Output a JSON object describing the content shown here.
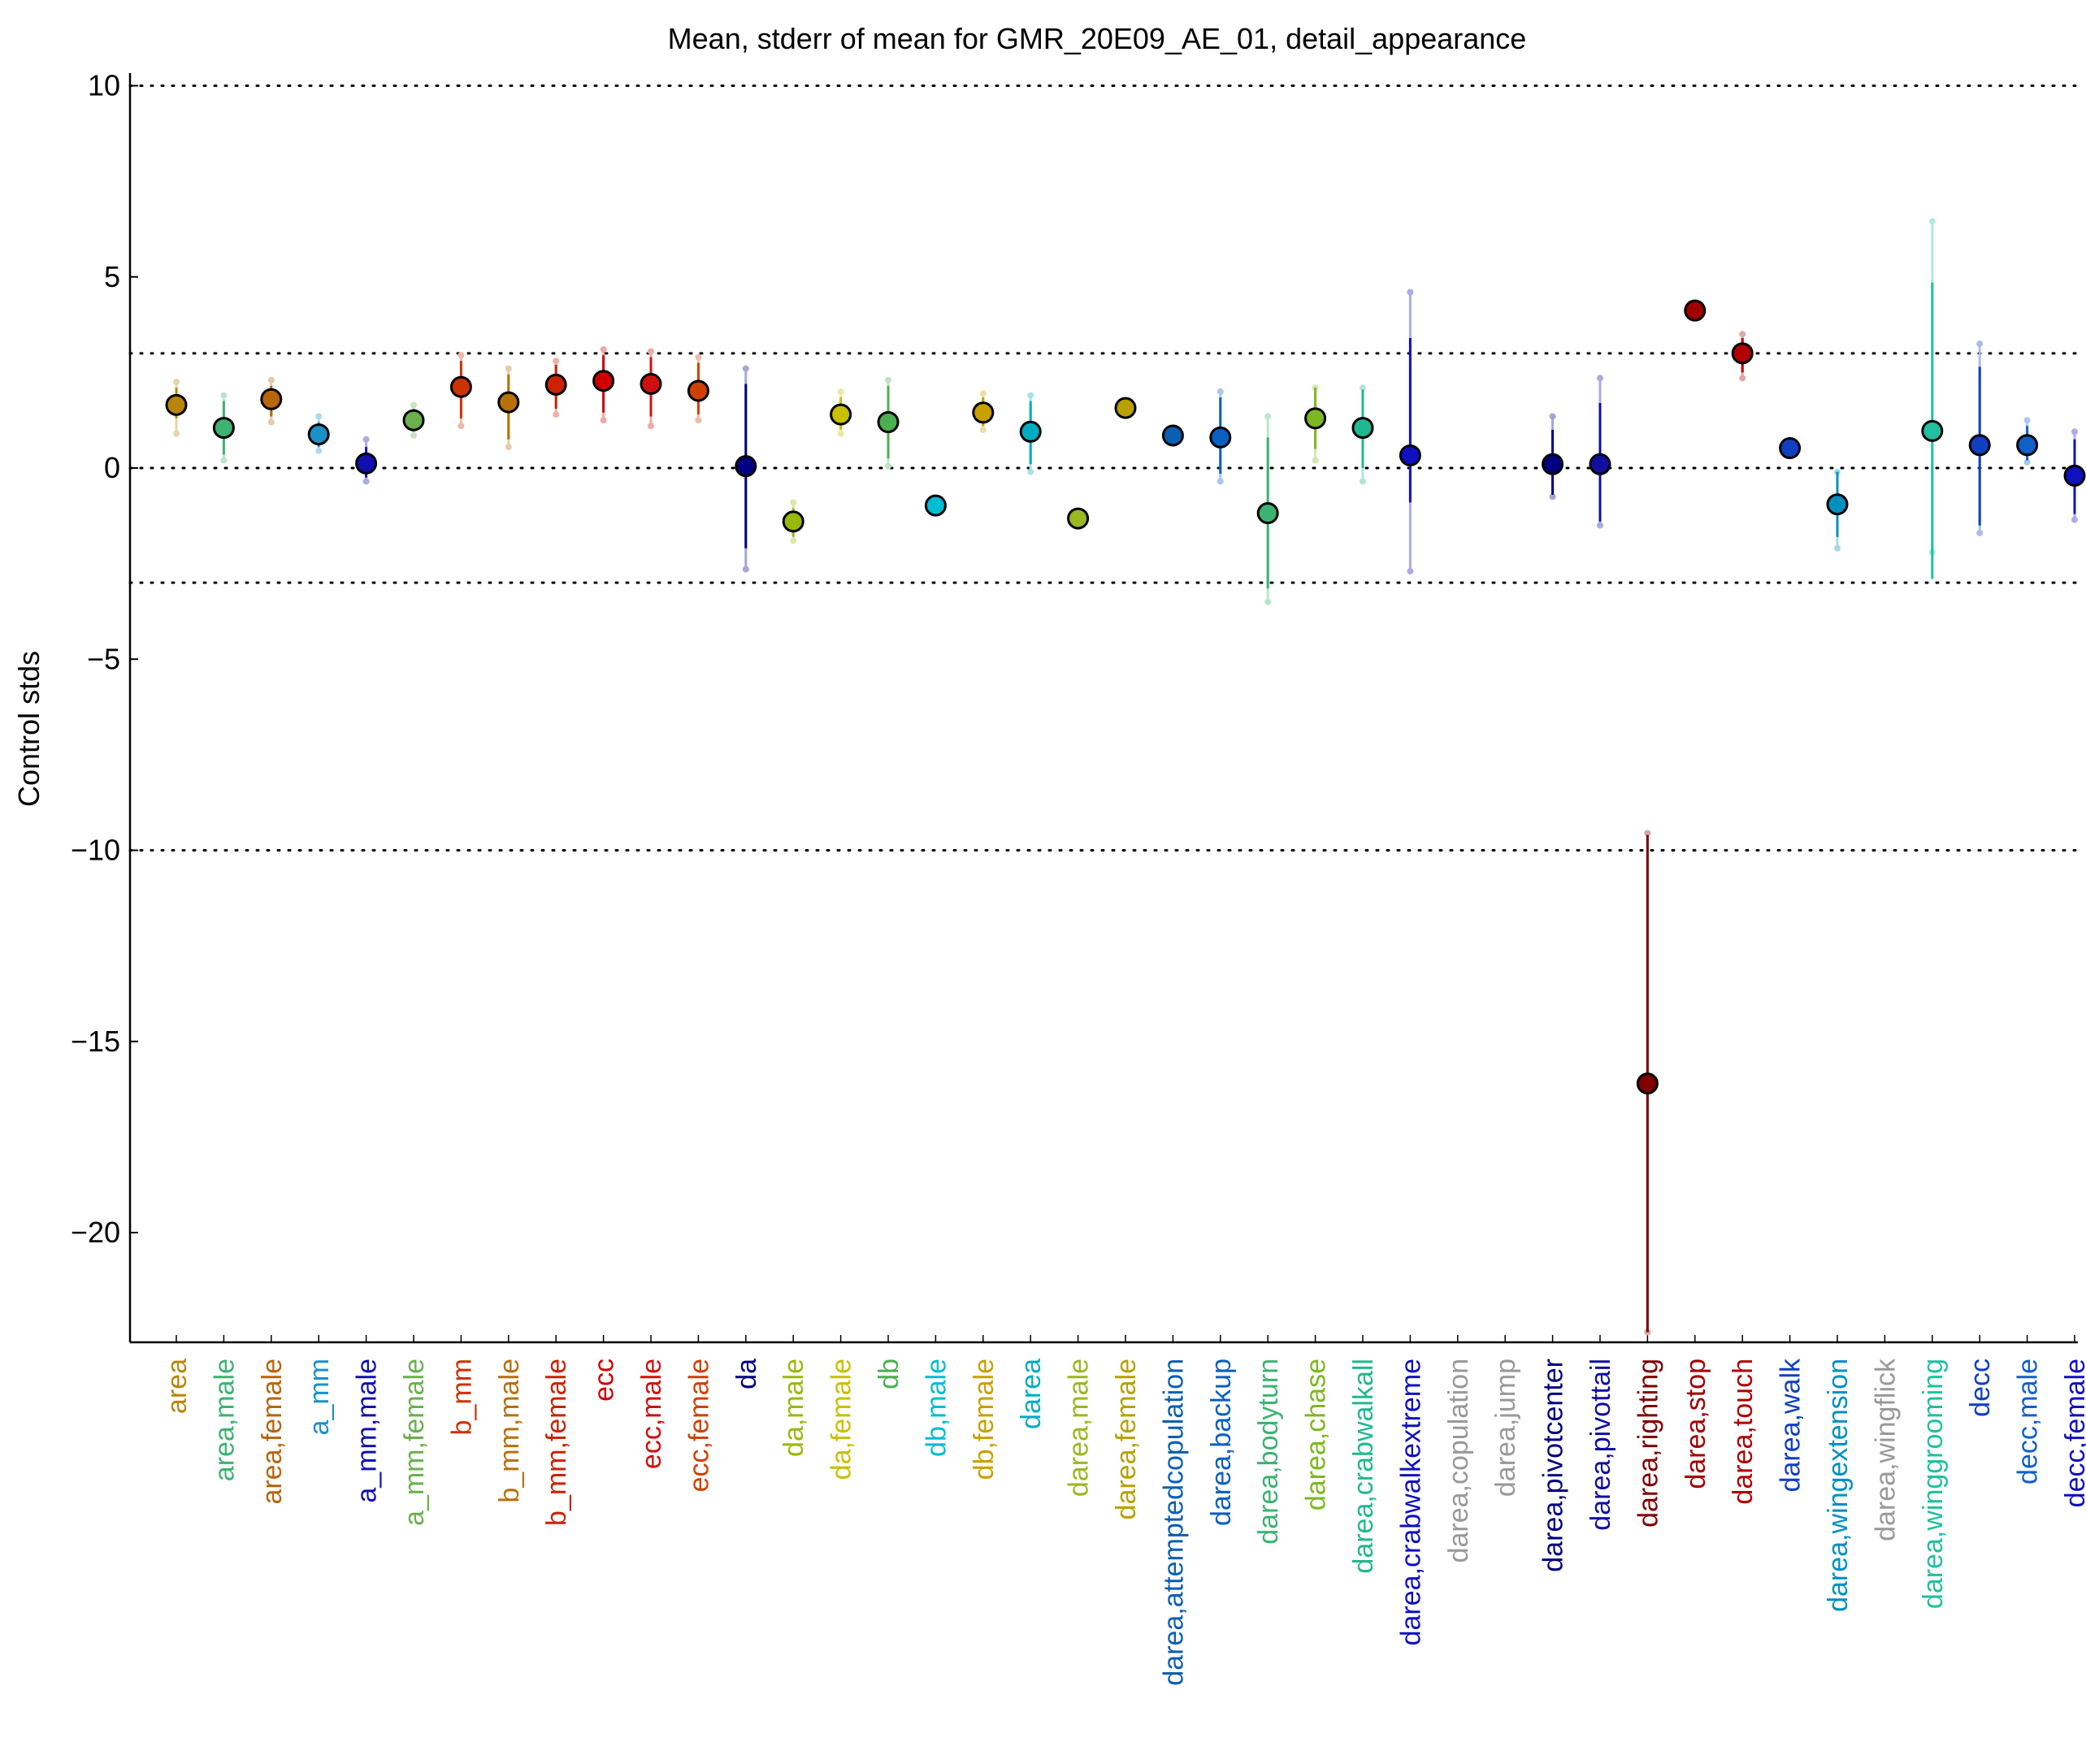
{
  "chart_data": {
    "type": "scatter",
    "title": "Mean, stderr of mean for GMR_20E09_AE_01, detail_appearance",
    "xlabel": "",
    "ylabel": "Control stds",
    "ylim": [
      -23,
      10.3
    ],
    "yticks": [
      10,
      5,
      0,
      -5,
      -10,
      -15,
      -20
    ],
    "ytick_labels": [
      "10",
      "5",
      "0",
      "−5",
      "−10",
      "−15",
      "−20"
    ],
    "reference_lines": [
      10,
      3,
      0,
      -3,
      -10
    ],
    "grid": false,
    "points": [
      {
        "label": "area",
        "color": "#b8860b",
        "mean": 1.65,
        "err_lo": 1.3,
        "err_hi": 2.1,
        "ext_lo": 0.9,
        "ext_hi": 2.25,
        "has_point": true
      },
      {
        "label": "area,male",
        "color": "#3cb371",
        "mean": 1.05,
        "err_lo": 0.35,
        "err_hi": 1.75,
        "ext_lo": 0.2,
        "ext_hi": 1.9,
        "has_point": true
      },
      {
        "label": "area,female",
        "color": "#b8650b",
        "mean": 1.8,
        "err_lo": 1.35,
        "err_hi": 2.15,
        "ext_lo": 1.2,
        "ext_hi": 2.3,
        "has_point": true
      },
      {
        "label": "a_mm",
        "color": "#1e90c8",
        "mean": 0.88,
        "err_lo": 0.55,
        "err_hi": 1.2,
        "ext_lo": 0.45,
        "ext_hi": 1.35,
        "has_point": true
      },
      {
        "label": "a_mm,male",
        "color": "#1010b0",
        "mean": 0.12,
        "err_lo": -0.25,
        "err_hi": 0.55,
        "ext_lo": -0.35,
        "ext_hi": 0.75,
        "has_point": true
      },
      {
        "label": "a_mm,female",
        "color": "#6ab04c",
        "mean": 1.25,
        "err_lo": 0.95,
        "err_hi": 1.55,
        "ext_lo": 0.85,
        "ext_hi": 1.65,
        "has_point": true
      },
      {
        "label": "b_mm",
        "color": "#cc3300",
        "mean": 2.12,
        "err_lo": 1.3,
        "err_hi": 2.8,
        "ext_lo": 1.1,
        "ext_hi": 2.95,
        "has_point": true
      },
      {
        "label": "b_mm,male",
        "color": "#b8700b",
        "mean": 1.72,
        "err_lo": 0.75,
        "err_hi": 2.45,
        "ext_lo": 0.55,
        "ext_hi": 2.6,
        "has_point": true
      },
      {
        "label": "b_mm,female",
        "color": "#cc2200",
        "mean": 2.18,
        "err_lo": 1.55,
        "err_hi": 2.7,
        "ext_lo": 1.4,
        "ext_hi": 2.8,
        "has_point": true
      },
      {
        "label": "ecc",
        "color": "#d00000",
        "mean": 2.28,
        "err_lo": 1.45,
        "err_hi": 2.95,
        "ext_lo": 1.25,
        "ext_hi": 3.1,
        "has_point": true
      },
      {
        "label": "ecc,male",
        "color": "#d01010",
        "mean": 2.2,
        "err_lo": 1.35,
        "err_hi": 2.9,
        "ext_lo": 1.1,
        "ext_hi": 3.05,
        "has_point": true
      },
      {
        "label": "ecc,female",
        "color": "#d04000",
        "mean": 2.02,
        "err_lo": 1.4,
        "err_hi": 2.75,
        "ext_lo": 1.25,
        "ext_hi": 2.9,
        "has_point": true
      },
      {
        "label": "da",
        "color": "#000080",
        "mean": 0.05,
        "err_lo": -2.1,
        "err_hi": 2.2,
        "ext_lo": -2.65,
        "ext_hi": 2.6,
        "has_point": true
      },
      {
        "label": "da,male",
        "color": "#9ab80b",
        "mean": -1.4,
        "err_lo": -1.8,
        "err_hi": -1.05,
        "ext_lo": -1.9,
        "ext_hi": -0.9,
        "has_point": true
      },
      {
        "label": "da,female",
        "color": "#c8c000",
        "mean": 1.4,
        "err_lo": 1.0,
        "err_hi": 1.85,
        "ext_lo": 0.9,
        "ext_hi": 2.0,
        "has_point": true
      },
      {
        "label": "db",
        "color": "#4caf50",
        "mean": 1.2,
        "err_lo": 0.25,
        "err_hi": 2.15,
        "ext_lo": 0.05,
        "ext_hi": 2.3,
        "has_point": true
      },
      {
        "label": "db,male",
        "color": "#00bcd4",
        "mean": -0.98,
        "err_lo": -1.1,
        "err_hi": -0.85,
        "ext_lo": -1.1,
        "ext_hi": -0.85,
        "has_point": true
      },
      {
        "label": "db,female",
        "color": "#c8a000",
        "mean": 1.45,
        "err_lo": 1.1,
        "err_hi": 1.85,
        "ext_lo": 1.0,
        "ext_hi": 1.95,
        "has_point": true
      },
      {
        "label": "darea",
        "color": "#00acc1",
        "mean": 0.95,
        "err_lo": 0.1,
        "err_hi": 1.75,
        "ext_lo": -0.1,
        "ext_hi": 1.9,
        "has_point": true
      },
      {
        "label": "darea,male",
        "color": "#9ab820",
        "mean": -1.32,
        "err_lo": -1.45,
        "err_hi": -1.2,
        "ext_lo": -1.45,
        "ext_hi": -1.2,
        "has_point": true
      },
      {
        "label": "darea,female",
        "color": "#b8a000",
        "mean": 1.57,
        "err_lo": 1.45,
        "err_hi": 1.7,
        "ext_lo": 1.45,
        "ext_hi": 1.7,
        "has_point": true
      },
      {
        "label": "darea,attemptedcopulation",
        "color": "#0a5fb0",
        "mean": 0.85,
        "err_lo": 0.75,
        "err_hi": 0.95,
        "ext_lo": 0.75,
        "ext_hi": 0.95,
        "has_point": true
      },
      {
        "label": "darea,backup",
        "color": "#0a60c0",
        "mean": 0.8,
        "err_lo": -0.15,
        "err_hi": 1.85,
        "ext_lo": -0.35,
        "ext_hi": 2.0,
        "has_point": true
      },
      {
        "label": "darea,bodyturn",
        "color": "#3cb371",
        "mean": -1.18,
        "err_lo": -3.15,
        "err_hi": 0.8,
        "ext_lo": -3.5,
        "ext_hi": 1.35,
        "has_point": true
      },
      {
        "label": "darea,chase",
        "color": "#7cb820",
        "mean": 1.3,
        "err_lo": 0.5,
        "err_hi": 2.1,
        "ext_lo": 0.2,
        "ext_hi": 2.1,
        "has_point": true
      },
      {
        "label": "darea,crabwalkall",
        "color": "#20b890",
        "mean": 1.05,
        "err_lo": 0.0,
        "err_hi": 2.05,
        "ext_lo": -0.35,
        "ext_hi": 2.1,
        "has_point": true
      },
      {
        "label": "darea,crabwalkextreme",
        "color": "#1010c0",
        "mean": 0.33,
        "err_lo": -0.9,
        "err_hi": 3.4,
        "ext_lo": -2.7,
        "ext_hi": 4.6,
        "has_point": true
      },
      {
        "label": "darea,copulation",
        "color": "#999999",
        "has_point": false
      },
      {
        "label": "darea,jump",
        "color": "#999999",
        "has_point": false
      },
      {
        "label": "darea,pivotcenter",
        "color": "#000080",
        "mean": 0.1,
        "err_lo": -0.7,
        "err_hi": 1.0,
        "ext_lo": -0.75,
        "ext_hi": 1.35,
        "has_point": true
      },
      {
        "label": "darea,pivottail",
        "color": "#1010a0",
        "mean": 0.1,
        "err_lo": -1.4,
        "err_hi": 1.7,
        "ext_lo": -1.5,
        "ext_hi": 2.35,
        "has_point": true
      },
      {
        "label": "darea,righting",
        "color": "#800000",
        "mean": -16.1,
        "err_lo": -22.6,
        "err_hi": -9.6,
        "ext_lo": -22.6,
        "ext_hi": -9.55,
        "has_point": true
      },
      {
        "label": "darea,stop",
        "color": "#a00000",
        "mean": 4.12,
        "err_lo": 4.05,
        "err_hi": 4.2,
        "ext_lo": 4.05,
        "ext_hi": 4.2,
        "has_point": true
      },
      {
        "label": "darea,touch",
        "color": "#b00000",
        "mean": 3.0,
        "err_lo": 2.5,
        "err_hi": 3.4,
        "ext_lo": 2.35,
        "ext_hi": 3.5,
        "has_point": true
      },
      {
        "label": "darea,walk",
        "color": "#1040c0",
        "mean": 0.52,
        "err_lo": 0.42,
        "err_hi": 0.62,
        "ext_lo": 0.42,
        "ext_hi": 0.62,
        "has_point": true
      },
      {
        "label": "darea,wingextension",
        "color": "#0090c0",
        "mean": -0.95,
        "err_lo": -1.8,
        "err_hi": -0.1,
        "ext_lo": -2.1,
        "ext_hi": -0.1,
        "has_point": true
      },
      {
        "label": "darea,wingflick",
        "color": "#999999",
        "has_point": false
      },
      {
        "label": "darea,winggrooming",
        "color": "#20c0a0",
        "mean": 0.97,
        "err_lo": -2.9,
        "err_hi": 4.85,
        "ext_lo": -2.2,
        "ext_hi": 6.45,
        "has_point": true
      },
      {
        "label": "decc",
        "color": "#1040c0",
        "mean": 0.6,
        "err_lo": -1.5,
        "err_hi": 2.65,
        "ext_lo": -1.7,
        "ext_hi": 3.25,
        "has_point": true
      },
      {
        "label": "decc,male",
        "color": "#1060c8",
        "mean": 0.6,
        "err_lo": 0.2,
        "err_hi": 1.1,
        "ext_lo": 0.15,
        "ext_hi": 1.25,
        "has_point": true
      },
      {
        "label": "decc,female",
        "color": "#1010c0",
        "mean": -0.2,
        "err_lo": -1.2,
        "err_hi": 0.75,
        "ext_lo": -1.35,
        "ext_hi": 0.95,
        "has_point": true
      }
    ]
  }
}
